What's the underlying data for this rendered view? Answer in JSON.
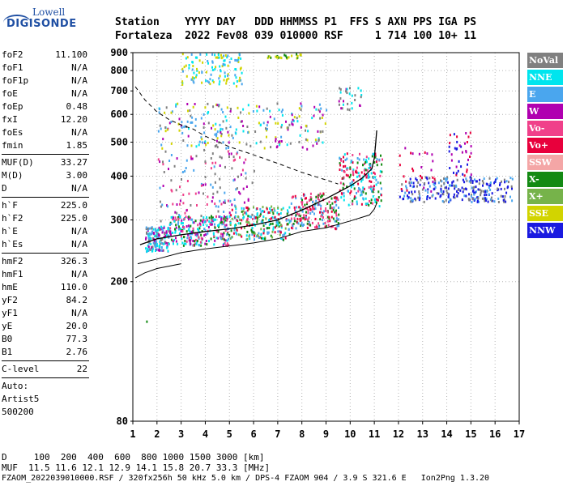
{
  "logo": {
    "top": "Lowell",
    "bottom": "DIGISONDE"
  },
  "header": {
    "labels": "Station    YYYY DAY   DDD HHMMSS P1  FFS S AXN PPS IGA PS",
    "values": "Fortaleza  2022 Fev08 039 010000 RSF     1 714 100 10+ 11"
  },
  "params": {
    "group1": [
      {
        "label": "foF2",
        "value": "11.100"
      },
      {
        "label": "foF1",
        "value": "N/A"
      },
      {
        "label": "foF1p",
        "value": "N/A"
      },
      {
        "label": "foE",
        "value": "N/A"
      },
      {
        "label": "foEp",
        "value": "0.48"
      },
      {
        "label": "fxI",
        "value": "12.20"
      },
      {
        "label": "foEs",
        "value": "N/A"
      },
      {
        "label": "fmin",
        "value": "1.85"
      }
    ],
    "group2": [
      {
        "label": "MUF(D)",
        "value": "33.27"
      },
      {
        "label": "M(D)",
        "value": "3.00"
      },
      {
        "label": "D",
        "value": "N/A"
      }
    ],
    "group3": [
      {
        "label": "h`F",
        "value": "225.0"
      },
      {
        "label": "h`F2",
        "value": "225.0"
      },
      {
        "label": "h`E",
        "value": "N/A"
      },
      {
        "label": "h`Es",
        "value": "N/A"
      }
    ],
    "group4": [
      {
        "label": "hmF2",
        "value": "326.3"
      },
      {
        "label": "hmF1",
        "value": "N/A"
      },
      {
        "label": "hmE",
        "value": "110.0"
      },
      {
        "label": "yF2",
        "value": "84.2"
      },
      {
        "label": "yF1",
        "value": "N/A"
      },
      {
        "label": "yE",
        "value": "20.0"
      },
      {
        "label": "B0",
        "value": "77.3"
      },
      {
        "label": "B1",
        "value": "2.76"
      }
    ],
    "clevel": {
      "label": "C-level",
      "value": "22"
    },
    "auto": [
      "Auto:",
      "Artist5",
      "500200"
    ]
  },
  "legend": [
    {
      "name": "NoVal",
      "color": "#808080"
    },
    {
      "name": "NNE",
      "color": "#00e5ee"
    },
    {
      "name": "E",
      "color": "#4aa6ee"
    },
    {
      "name": "W",
      "color": "#b000b0"
    },
    {
      "name": "Vo-",
      "color": "#f0408a"
    },
    {
      "name": "Vo+",
      "color": "#e8003c"
    },
    {
      "name": "SSW",
      "color": "#f4a6a6"
    },
    {
      "name": "X-",
      "color": "#138a13"
    },
    {
      "name": "X+",
      "color": "#76b34a"
    },
    {
      "name": "SSE",
      "color": "#d2d400"
    },
    {
      "name": "NNW",
      "color": "#1a1ae0"
    }
  ],
  "footer": {
    "line1": "D     100  200  400  600  800 1000 1500 3000 [km]",
    "line2": "MUF  11.5 11.6 12.1 12.9 14.1 15.8 20.7 33.3 [MHz]",
    "line3": "FZAOM_2022039010000.RSF / 320fx256h 50 kHz 5.0 km / DPS-4 FZAOM 904 / 3.9 S 321.6 E   Ion2Png 1.3.20"
  },
  "chart_data": {
    "type": "scatter",
    "x_ticks": [
      1,
      2,
      3,
      4,
      5,
      6,
      7,
      8,
      9,
      10,
      11,
      12,
      13,
      14,
      15,
      16,
      17
    ],
    "y_ticks": [
      80,
      200,
      300,
      400,
      500,
      600,
      700,
      800,
      900
    ],
    "xlim": [
      1,
      17
    ],
    "ylim": [
      80,
      900
    ],
    "y_scale": "log",
    "grid": "dotted",
    "curves": {
      "profile": {
        "x": [
          1.3,
          2,
          3,
          4,
          5,
          6,
          7,
          8,
          9,
          10,
          10.5,
          10.9,
          11.0,
          11.05,
          11.1
        ],
        "y": [
          255,
          265,
          272,
          278,
          283,
          290,
          300,
          320,
          345,
          375,
          395,
          420,
          450,
          490,
          540
        ]
      },
      "lower_trace": {
        "x": [
          1.2,
          2,
          3,
          4,
          5,
          6,
          7,
          8,
          9,
          10,
          10.8,
          11.0,
          11.1
        ],
        "y": [
          225,
          232,
          242,
          248,
          253,
          258,
          265,
          278,
          285,
          298,
          310,
          322,
          335
        ]
      },
      "dashed_muf": {
        "x": [
          1.1,
          1.5,
          2,
          2.5,
          3,
          3.5,
          4,
          5,
          6,
          7,
          8,
          9,
          9.5
        ],
        "y": [
          720,
          660,
          610,
          580,
          560,
          545,
          520,
          485,
          460,
          435,
          410,
          390,
          380
        ]
      },
      "left_floor": {
        "x": [
          1.1,
          1.5,
          2,
          3
        ],
        "y": [
          205,
          212,
          218,
          225
        ]
      }
    },
    "clusters": [
      {
        "x": [
          1.5,
          2.5
        ],
        "y": [
          245,
          290
        ],
        "colors": [
          "#4aa6ee",
          "#00e5ee",
          "#808080",
          "#b000b0"
        ],
        "n": 160
      },
      {
        "x": [
          2.5,
          5
        ],
        "y": [
          255,
          310
        ],
        "colors": [
          "#4aa6ee",
          "#00e5ee",
          "#138a13",
          "#f0408a",
          "#b000b0"
        ],
        "n": 260
      },
      {
        "x": [
          5,
          7.5
        ],
        "y": [
          265,
          330
        ],
        "colors": [
          "#4aa6ee",
          "#00e5ee",
          "#138a13",
          "#e8003c",
          "#76b34a"
        ],
        "n": 220
      },
      {
        "x": [
          7.5,
          9.5
        ],
        "y": [
          285,
          360
        ],
        "colors": [
          "#e8003c",
          "#f0408a",
          "#138a13",
          "#4aa6ee"
        ],
        "n": 200
      },
      {
        "x": [
          9.5,
          11.3
        ],
        "y": [
          330,
          470
        ],
        "colors": [
          "#e8003c",
          "#f0408a",
          "#138a13",
          "#4aa6ee",
          "#00e5ee"
        ],
        "n": 200
      },
      {
        "x": [
          2,
          6
        ],
        "y": [
          300,
          480
        ],
        "colors": [
          "#b000b0",
          "#f0408a",
          "#4aa6ee",
          "#808080"
        ],
        "n": 140
      },
      {
        "x": [
          12,
          16.7
        ],
        "y": [
          340,
          400
        ],
        "colors": [
          "#1a1ae0",
          "#1a1ae0",
          "#4aa6ee",
          "#808080"
        ],
        "n": 260
      },
      {
        "x": [
          12,
          13.5
        ],
        "y": [
          360,
          490
        ],
        "colors": [
          "#b000b0",
          "#e8003c"
        ],
        "n": 25
      },
      {
        "x": [
          14,
          15
        ],
        "y": [
          400,
          540
        ],
        "colors": [
          "#1a1ae0",
          "#b000b0",
          "#e8003c"
        ],
        "n": 40
      },
      {
        "x": [
          2,
          9
        ],
        "y": [
          480,
          650
        ],
        "colors": [
          "#d2d400",
          "#4aa6ee",
          "#808080",
          "#00e5ee",
          "#b000b0"
        ],
        "n": 240
      },
      {
        "x": [
          3,
          5.5
        ],
        "y": [
          720,
          900
        ],
        "colors": [
          "#d2d400",
          "#00e5ee",
          "#4aa6ee"
        ],
        "n": 120
      },
      {
        "x": [
          6.5,
          8
        ],
        "y": [
          870,
          900
        ],
        "colors": [
          "#d2d400",
          "#138a13"
        ],
        "n": 25
      },
      {
        "x": [
          9.5,
          10.5
        ],
        "y": [
          620,
          720
        ],
        "colors": [
          "#00e5ee",
          "#808080",
          "#b000b0"
        ],
        "n": 30
      }
    ]
  }
}
